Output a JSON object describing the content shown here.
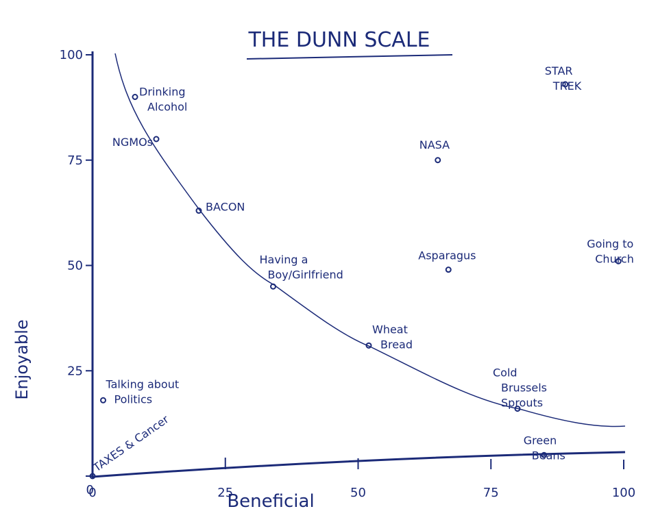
{
  "chart_data": {
    "type": "scatter",
    "title": "THE DUNN SCALE",
    "x_label": "Beneficial",
    "y_label": "Enjoyable",
    "xlim": [
      0,
      100
    ],
    "ylim": [
      0,
      100
    ],
    "xticks": [
      0,
      25,
      50,
      75,
      100
    ],
    "yticks": [
      0,
      25,
      50,
      75,
      100
    ],
    "color": "#1b2a78",
    "labels": [
      [
        "Drinking",
        "Alcohol"
      ],
      [
        "NGMOs"
      ],
      [
        "BACON"
      ],
      [
        "Having a",
        "Boy/Girlfriend"
      ],
      [
        "Wheat",
        "Bread"
      ],
      [
        "Cold",
        "Brussels",
        "Sprouts"
      ],
      [
        "Green",
        "Beans"
      ],
      [
        "TAXES & Cancer"
      ],
      [
        "Talking about",
        "Politics"
      ],
      [
        "NASA"
      ],
      [
        "Asparagus"
      ],
      [
        "STAR",
        "TREK"
      ],
      [
        "Going to",
        "Church"
      ]
    ],
    "x": [
      8,
      12,
      20,
      34,
      52,
      80,
      85,
      0,
      2,
      65,
      67,
      89,
      99
    ],
    "values": [
      90,
      80,
      63,
      45,
      31,
      16,
      5,
      0,
      18,
      75,
      49,
      93,
      51
    ]
  }
}
